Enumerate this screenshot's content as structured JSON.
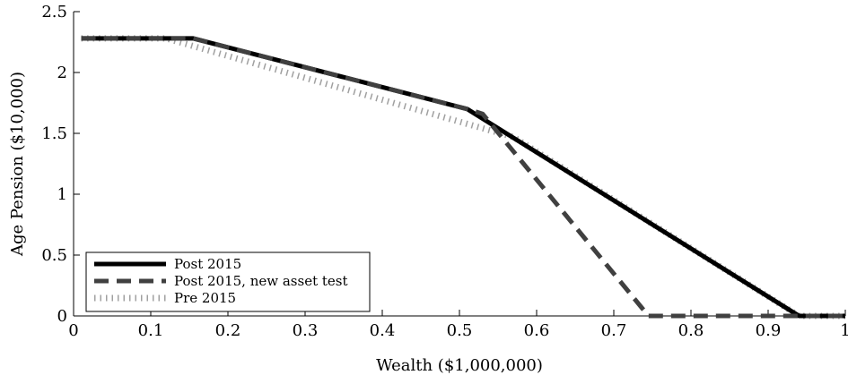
{
  "chart_data": {
    "type": "line",
    "xlabel": "Wealth ($1,000,000)",
    "ylabel": "Age Pension ($10,000)",
    "xlim": [
      0,
      1
    ],
    "ylim": [
      0,
      2.5
    ],
    "xticks": [
      "0",
      "0.1",
      "0.2",
      "0.3",
      "0.4",
      "0.5",
      "0.6",
      "0.7",
      "0.8",
      "0.9",
      "1"
    ],
    "yticks": [
      "0",
      "0.5",
      "1",
      "1.5",
      "2",
      "2.5"
    ],
    "grid": false,
    "legend_position": "bottom-left",
    "series": [
      {
        "name": "Post 2015",
        "style": "solid",
        "color": "#000000",
        "points": [
          [
            0.01,
            2.28
          ],
          [
            0.155,
            2.28
          ],
          [
            0.51,
            1.7
          ],
          [
            0.94,
            0.0
          ],
          [
            1.0,
            0.0
          ]
        ]
      },
      {
        "name": "Post 2015, new asset test",
        "style": "dashed",
        "color": "#404040",
        "points": [
          [
            0.01,
            2.28
          ],
          [
            0.155,
            2.28
          ],
          [
            0.51,
            1.7
          ],
          [
            0.53,
            1.66
          ],
          [
            0.745,
            0.0
          ],
          [
            1.0,
            0.0
          ]
        ]
      },
      {
        "name": "Pre 2015",
        "style": "dotted",
        "color": "#a0a0a0",
        "points": [
          [
            0.01,
            2.28
          ],
          [
            0.12,
            2.28
          ],
          [
            0.57,
            1.47
          ],
          [
            0.94,
            0.0
          ],
          [
            1.0,
            0.0
          ]
        ]
      }
    ]
  }
}
